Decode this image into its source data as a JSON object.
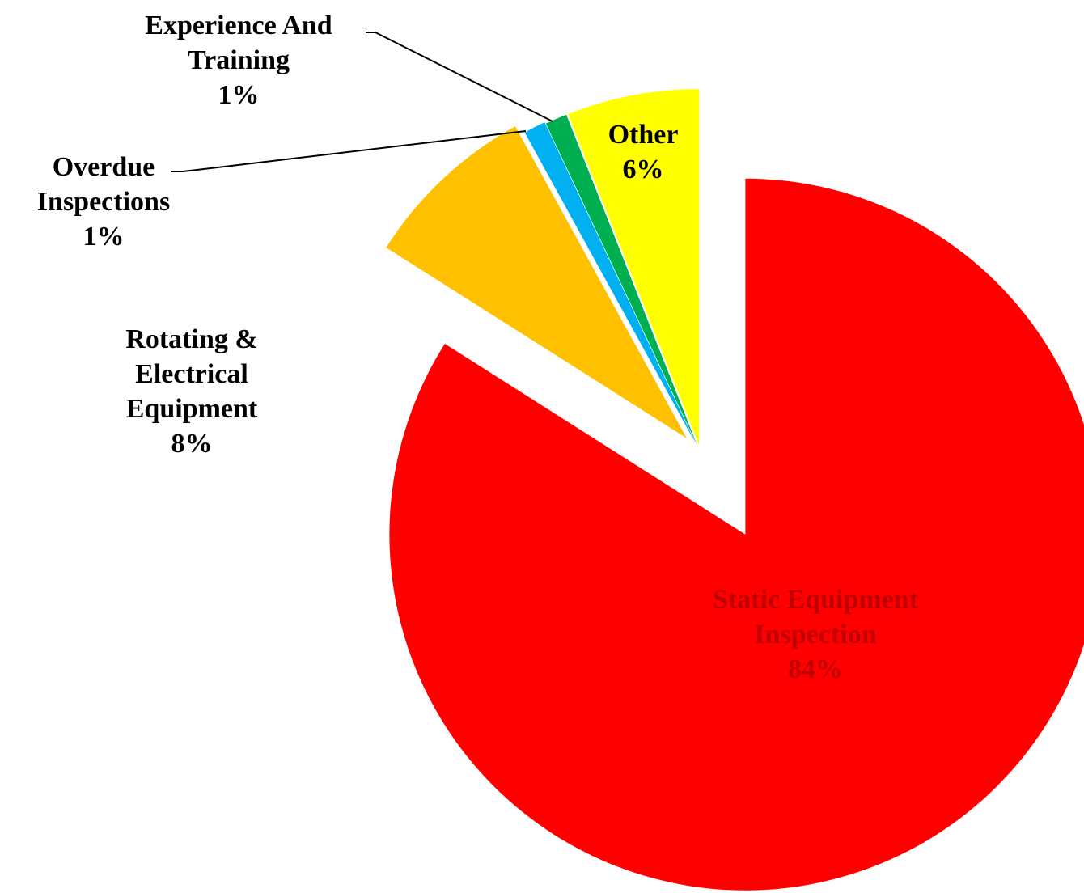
{
  "chart_data": {
    "type": "pie",
    "categories": [
      "Static Equipment Inspection",
      "Rotating & Electrical Equipment",
      "Overdue Inspections",
      "Experience And Training",
      "Other"
    ],
    "values": [
      84,
      8,
      1,
      1,
      6
    ],
    "value_labels": [
      "84%",
      "8%",
      "1%",
      "1%",
      "6%"
    ],
    "colors": [
      "#ff0000",
      "#ffc000",
      "#00b0f0",
      "#00b050",
      "#ffff00"
    ]
  }
}
